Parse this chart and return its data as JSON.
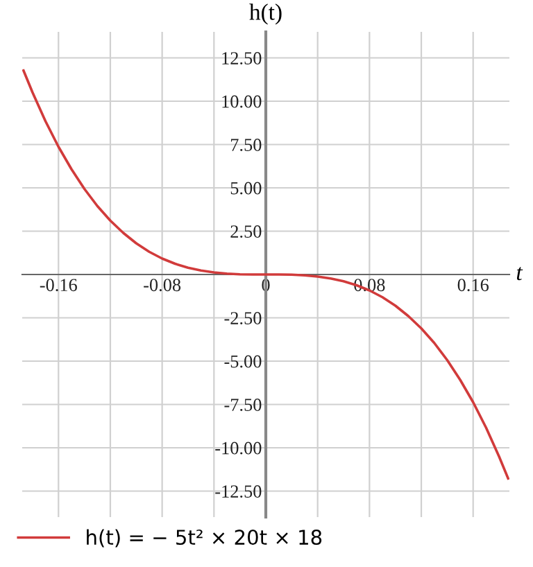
{
  "chart_data": {
    "type": "line",
    "xlabel": "t",
    "ylabel": "h(t)",
    "x": [
      -0.187,
      -0.18,
      -0.17,
      -0.16,
      -0.15,
      -0.14,
      -0.13,
      -0.12,
      -0.11,
      -0.1,
      -0.09,
      -0.08,
      -0.07,
      -0.06,
      -0.05,
      -0.04,
      -0.03,
      -0.02,
      -0.01,
      0,
      0.01,
      0.02,
      0.03,
      0.04,
      0.05,
      0.06,
      0.07,
      0.08,
      0.09,
      0.1,
      0.11,
      0.12,
      0.13,
      0.14,
      0.15,
      0.16,
      0.17,
      0.18,
      0.187
    ],
    "series": [
      {
        "name": "h(t) = − 5t² × 20t × 18",
        "color": "#d13b3b",
        "values": [
          11.77,
          10.5,
          8.84,
          7.37,
          6.08,
          4.94,
          3.95,
          3.11,
          2.4,
          1.8,
          1.31,
          0.92,
          0.62,
          0.39,
          0.23,
          0.12,
          0.05,
          0.01,
          0,
          0,
          0,
          -0.01,
          -0.05,
          -0.12,
          -0.23,
          -0.39,
          -0.62,
          -0.92,
          -1.31,
          -1.8,
          -2.4,
          -3.11,
          -3.95,
          -4.94,
          -6.08,
          -7.37,
          -8.84,
          -10.5,
          -11.77
        ]
      }
    ],
    "xlim": [
      -0.188,
      0.188
    ],
    "ylim": [
      -14,
      14
    ],
    "xticks": [
      {
        "value": -0.16,
        "label": "-0.16"
      },
      {
        "value": -0.12,
        "label": null
      },
      {
        "value": -0.08,
        "label": "-0.08"
      },
      {
        "value": -0.04,
        "label": null
      },
      {
        "value": 0,
        "label": "0"
      },
      {
        "value": 0.04,
        "label": null
      },
      {
        "value": 0.08,
        "label": "0.08"
      },
      {
        "value": 0.12,
        "label": null
      },
      {
        "value": 0.16,
        "label": "0.16"
      }
    ],
    "yticks": [
      {
        "value": -12.5,
        "label": "-12.50"
      },
      {
        "value": -10,
        "label": "-10.00"
      },
      {
        "value": -7.5,
        "label": "-7.50"
      },
      {
        "value": -5,
        "label": "-5.00"
      },
      {
        "value": -2.5,
        "label": "-2.50"
      },
      {
        "value": 2.5,
        "label": "2.50"
      },
      {
        "value": 5,
        "label": "5.00"
      },
      {
        "value": 7.5,
        "label": "7.50"
      },
      {
        "value": 10,
        "label": "10.00"
      },
      {
        "value": 12.5,
        "label": "12.50"
      }
    ],
    "grid": true,
    "legend": "bottom",
    "marker": "none",
    "line_style": "solid"
  }
}
